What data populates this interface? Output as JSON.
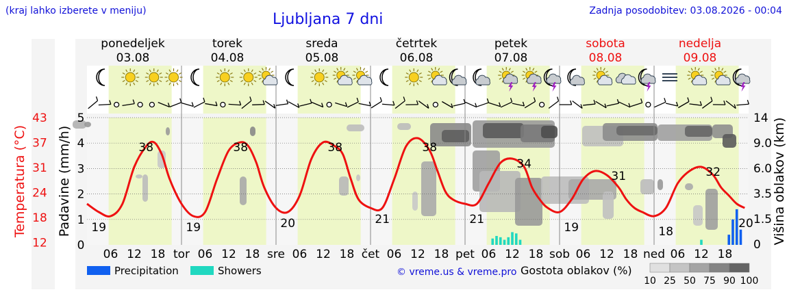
{
  "header": {
    "hint": "(kraj lahko izberete v meniju)",
    "title": "Ljubljana 7 dni",
    "updated": "Zadnja posodobitev: 03.08.2026 - 00:04"
  },
  "days": [
    {
      "name": "ponedeljek",
      "date": "03.08",
      "short": "",
      "weekend": false
    },
    {
      "name": "torek",
      "date": "04.08",
      "short": "tor",
      "weekend": false
    },
    {
      "name": "sreda",
      "date": "05.08",
      "short": "sre",
      "weekend": false
    },
    {
      "name": "četrtek",
      "date": "06.08",
      "short": "čet",
      "weekend": false
    },
    {
      "name": "petek",
      "date": "07.08",
      "short": "pet",
      "weekend": false
    },
    {
      "name": "sobota",
      "date": "08.08",
      "short": "sob",
      "weekend": true
    },
    {
      "name": "nedelja",
      "date": "09.08",
      "short": "ned",
      "weekend": true
    }
  ],
  "hour_ticks": [
    "06",
    "12",
    "18"
  ],
  "icons": [
    [
      "moon",
      "sun",
      "sun",
      "sun"
    ],
    [
      "moon",
      "sun",
      "sun",
      "sun-cloud"
    ],
    [
      "moon",
      "sun",
      "sun-cloud",
      "sun-cloud"
    ],
    [
      "moon",
      "sun",
      "sun-cloud",
      "moon-cloud"
    ],
    [
      "moon-cloud",
      "sun-storm",
      "sun-storm",
      "moon-storm"
    ],
    [
      "moon-cloud",
      "sun-cloud",
      "cloud",
      "moon-storm"
    ],
    [
      "fog",
      "sun-cloud",
      "sun-cloud",
      "moon-storm"
    ]
  ],
  "axes": {
    "left_temp_label": "Temperatura (°C)",
    "left_temp_ticks": [
      "43",
      "37",
      "31",
      "24",
      "18",
      "12"
    ],
    "left_precip_label": "Padavine (mm/h)",
    "left_precip_ticks": [
      "5",
      "4",
      "3",
      "2",
      "1",
      "0"
    ],
    "right_label": "Višina oblakov (km)",
    "right_ticks": [
      "14",
      "9.0",
      "6.0",
      "3.5",
      "1.5",
      "0"
    ]
  },
  "legend": {
    "precip": "Precipitation",
    "showers": "Showers",
    "credit": "© vreme.us & vreme.pro",
    "density_label": "Gostota oblakov (%)",
    "density_ticks": [
      "10",
      "25",
      "50",
      "75",
      "90",
      "100"
    ]
  },
  "colors": {
    "temperature": "#ee1111",
    "precip": "#1060f0",
    "showers": "#20d8c0",
    "daylight": "#eef7c8",
    "weekend": "#ee1111",
    "blue_text": "#1010e0"
  },
  "chart_data": {
    "type": "line",
    "title": "Ljubljana 7 dni",
    "xlabel": "",
    "ylabel": "Temperatura (°C)",
    "ylim": [
      12,
      43
    ],
    "x_unit": "hours since 03.08 00:00",
    "series": [
      {
        "name": "Temperatura (°C)",
        "x": [
          0,
          3,
          6,
          9,
          12,
          15,
          17,
          19,
          21,
          24,
          27,
          30,
          33,
          36,
          39,
          41,
          43,
          45,
          48,
          51,
          54,
          57,
          60,
          63,
          65,
          67,
          69,
          72,
          75,
          78,
          81,
          84,
          87,
          89,
          91,
          93,
          96,
          99,
          102,
          105,
          108,
          111,
          113,
          115,
          117,
          120,
          123,
          126,
          129,
          132,
          135,
          137,
          139,
          141,
          144,
          147,
          150,
          153,
          156,
          159,
          161,
          163,
          165,
          167
        ],
        "values": [
          22,
          20,
          19,
          22,
          31,
          36,
          37,
          34,
          28,
          22,
          19,
          20,
          28,
          35,
          37,
          36,
          32,
          26,
          21,
          20,
          24,
          33,
          37,
          36,
          34,
          28,
          23,
          21,
          21,
          28,
          36,
          38,
          35,
          30,
          25,
          23,
          22,
          22,
          27,
          32,
          33,
          31,
          26,
          23,
          21,
          20,
          23,
          28,
          30,
          29,
          26,
          23,
          21,
          20,
          19,
          21,
          27,
          30,
          31,
          29,
          26,
          24,
          22,
          21
        ]
      },
      {
        "name": "Padavine (mm/h)",
        "x": [
          103,
          104,
          105,
          106,
          107,
          108,
          109,
          110,
          156,
          163,
          164,
          165,
          166
        ],
        "values": [
          0.25,
          0.35,
          0.3,
          0.2,
          0.3,
          0.5,
          0.45,
          0.2,
          0.2,
          0.4,
          1.0,
          1.4,
          0.6
        ]
      }
    ],
    "annotations": [
      {
        "x": 3,
        "value": 19,
        "label": "19"
      },
      {
        "x": 15,
        "value": 38,
        "label": "38"
      },
      {
        "x": 27,
        "value": 19,
        "label": "19"
      },
      {
        "x": 39,
        "value": 38,
        "label": "38"
      },
      {
        "x": 51,
        "value": 20,
        "label": "20"
      },
      {
        "x": 63,
        "value": 38,
        "label": "38"
      },
      {
        "x": 75,
        "value": 21,
        "label": "21"
      },
      {
        "x": 87,
        "value": 38,
        "label": "38"
      },
      {
        "x": 99,
        "value": 21,
        "label": "21"
      },
      {
        "x": 111,
        "value": 34,
        "label": "34"
      },
      {
        "x": 123,
        "value": 19,
        "label": "19"
      },
      {
        "x": 135,
        "value": 31,
        "label": "31"
      },
      {
        "x": 147,
        "value": 18,
        "label": "18"
      },
      {
        "x": 159,
        "value": 32,
        "label": "32"
      },
      {
        "x": 167,
        "value": 20,
        "label": "20"
      }
    ],
    "grid": true
  }
}
